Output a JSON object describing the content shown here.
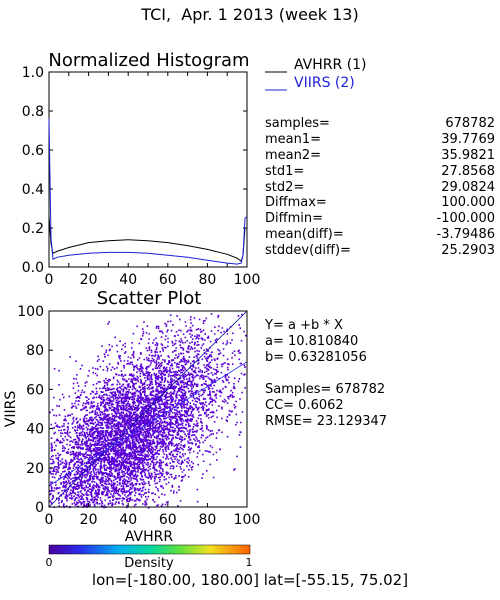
{
  "page_title": "TCI,  Apr. 1 2013 (week 13)",
  "footer": "lon=[-180.00, 180.00] lat=[-55.15, 75.02]",
  "stats_table": [
    {
      "label": "samples=",
      "value": "678782"
    },
    {
      "label": "mean1=",
      "value": "39.7769"
    },
    {
      "label": "mean2=",
      "value": "35.9821"
    },
    {
      "label": "std1=",
      "value": "27.8568"
    },
    {
      "label": "std2=",
      "value": "29.0824"
    },
    {
      "label": "Diffmax=",
      "value": "100.000"
    },
    {
      "label": "Diffmin=",
      "value": "-100.000"
    },
    {
      "label": "mean(diff)=",
      "value": "-3.79486"
    },
    {
      "label": "stddev(diff)=",
      "value": "25.2903"
    }
  ],
  "fit": {
    "equation": "Y= a +b * X",
    "a": "a= 10.810840",
    "b": "b= 0.63281056",
    "samples": "Samples= 678782",
    "cc": "CC=  0.6062",
    "rmse": "RMSE= 23.129347"
  },
  "colors": {
    "series1": "#000000",
    "series2": "#1f1fd6",
    "scatter": "#5a00d6"
  },
  "chart_data": [
    {
      "type": "line",
      "title": "Normalized Histogram",
      "xlim": [
        0,
        100
      ],
      "ylim": [
        0,
        1.0
      ],
      "xticks": [
        "0",
        "10",
        "20",
        "30",
        "40",
        "50",
        "60",
        "70",
        "80",
        "90",
        "100"
      ],
      "yticks": [
        "0.0",
        "0.2",
        "0.4",
        "0.6",
        "0.8",
        "1.0"
      ],
      "legend_position": "top-right",
      "series": [
        {
          "name": "AVHRR (1)",
          "color": "#000000",
          "x": [
            0,
            1,
            2,
            4,
            10,
            20,
            30,
            40,
            50,
            60,
            70,
            80,
            90,
            95,
            97,
            98,
            99,
            100
          ],
          "y": [
            0.26,
            0.12,
            0.07,
            0.08,
            0.1,
            0.125,
            0.135,
            0.14,
            0.135,
            0.125,
            0.11,
            0.09,
            0.065,
            0.045,
            0.03,
            0.06,
            0.2,
            0.2
          ]
        },
        {
          "name": "VIIRS (2)",
          "color": "#1f1fd6",
          "x": [
            0,
            1,
            2,
            4,
            10,
            20,
            30,
            40,
            50,
            60,
            70,
            80,
            90,
            95,
            97,
            98,
            99,
            100
          ],
          "y": [
            0.76,
            0.15,
            0.04,
            0.05,
            0.06,
            0.07,
            0.075,
            0.075,
            0.07,
            0.06,
            0.05,
            0.035,
            0.02,
            0.015,
            0.02,
            0.06,
            0.25,
            0.26
          ]
        }
      ]
    },
    {
      "type": "scatter",
      "title": "Scatter Plot",
      "xlabel": "AVHRR",
      "ylabel": "VIIRS",
      "xlim": [
        0,
        100
      ],
      "ylim": [
        0,
        100
      ],
      "xticks": [
        "0",
        "20",
        "40",
        "60",
        "80",
        "100"
      ],
      "yticks": [
        "0",
        "20",
        "40",
        "60",
        "80",
        "100"
      ],
      "fit_line": {
        "intercept": 10.81084,
        "slope": 0.63281056
      },
      "one_to_one_line": true,
      "colorbar": {
        "label": "Density",
        "min": "0",
        "max": "1"
      },
      "density_summary": {
        "samples": 678782,
        "mean_x": 39.7769,
        "mean_y": 35.9821,
        "std_x": 27.8568,
        "std_y": 29.0824,
        "cc": 0.6062
      }
    }
  ]
}
